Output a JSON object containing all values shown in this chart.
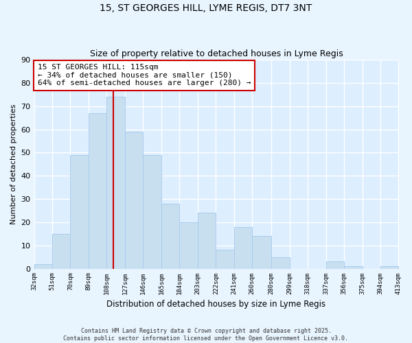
{
  "title_line1": "15, ST GEORGES HILL, LYME REGIS, DT7 3NT",
  "title_line2": "Size of property relative to detached houses in Lyme Regis",
  "xlabel": "Distribution of detached houses by size in Lyme Regis",
  "ylabel": "Number of detached properties",
  "bar_color": "#c8dff0",
  "bar_edge_color": "#aaccee",
  "background_color": "#ddeeff",
  "grid_color": "#ffffff",
  "fig_background": "#e8f4fe",
  "bins": [
    32,
    51,
    70,
    89,
    108,
    127,
    146,
    165,
    184,
    203,
    222,
    241,
    260,
    280,
    299,
    318,
    337,
    356,
    375,
    394,
    413
  ],
  "counts": [
    2,
    15,
    49,
    67,
    74,
    59,
    49,
    28,
    20,
    24,
    8,
    18,
    14,
    5,
    0,
    0,
    3,
    1,
    0,
    1
  ],
  "vline_x": 115,
  "vline_color": "#cc0000",
  "annotation_text": "15 ST GEORGES HILL: 115sqm\n← 34% of detached houses are smaller (150)\n64% of semi-detached houses are larger (280) →",
  "annotation_box_color": "#ffffff",
  "annotation_box_edge": "#cc0000",
  "ylim": [
    0,
    90
  ],
  "yticks": [
    0,
    10,
    20,
    30,
    40,
    50,
    60,
    70,
    80,
    90
  ],
  "tick_labels": [
    "32sqm",
    "51sqm",
    "70sqm",
    "89sqm",
    "108sqm",
    "127sqm",
    "146sqm",
    "165sqm",
    "184sqm",
    "203sqm",
    "222sqm",
    "241sqm",
    "260sqm",
    "280sqm",
    "299sqm",
    "318sqm",
    "337sqm",
    "356sqm",
    "375sqm",
    "394sqm",
    "413sqm"
  ],
  "footer_line1": "Contains HM Land Registry data © Crown copyright and database right 2025.",
  "footer_line2": "Contains public sector information licensed under the Open Government Licence v3.0."
}
